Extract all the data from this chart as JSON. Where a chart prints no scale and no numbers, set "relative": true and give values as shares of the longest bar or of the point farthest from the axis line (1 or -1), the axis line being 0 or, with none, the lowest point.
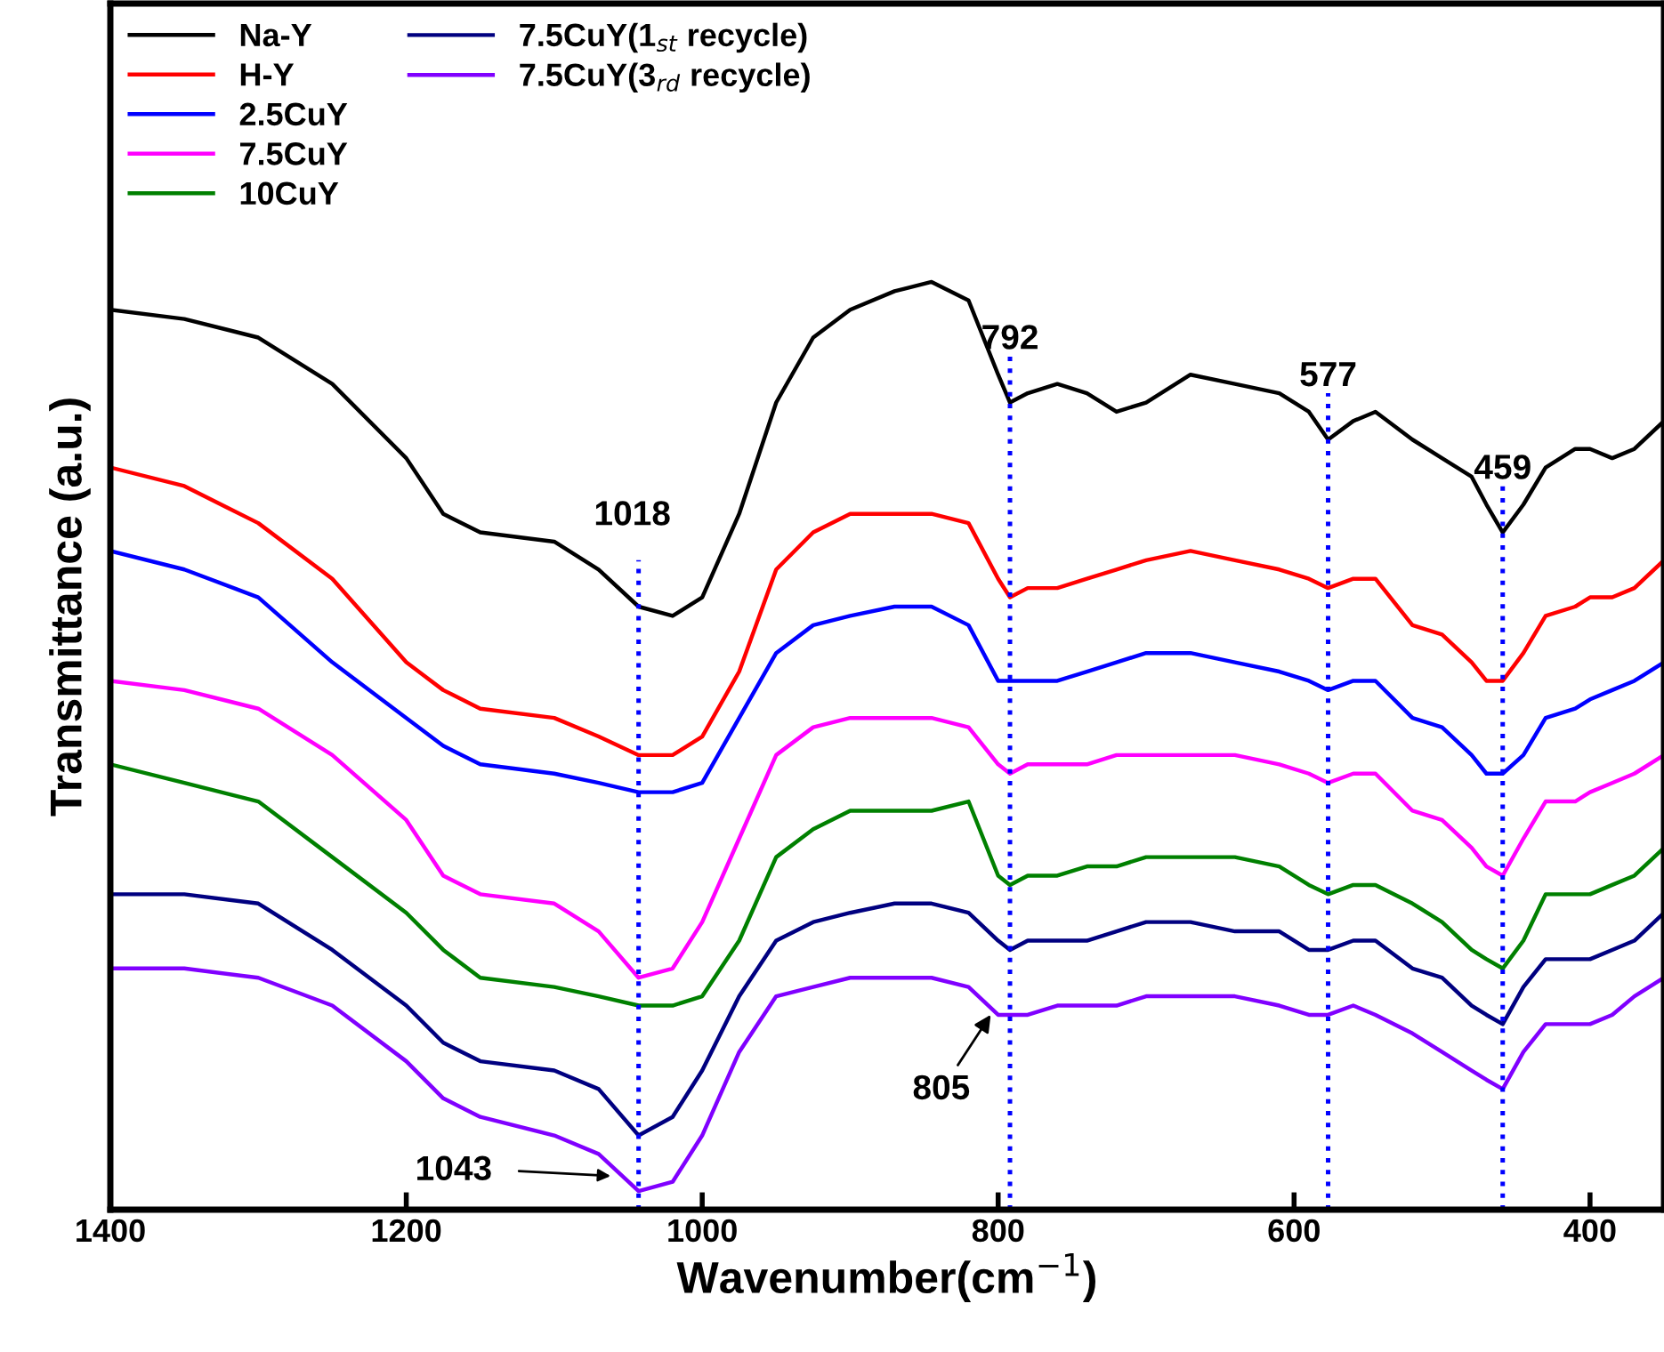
{
  "chart_data": {
    "type": "line",
    "relative": true,
    "xlabel": "Wavenumber(cm$^{−1}$)",
    "ylabel": "Transmittance (a.u.)",
    "xlim": [
      1400,
      350
    ],
    "xticks": [
      1400,
      1200,
      1000,
      800,
      600,
      400
    ],
    "grid": false,
    "legend": "top left",
    "line_style": "solid",
    "marker": "none",
    "x": [
      1400,
      1350,
      1300,
      1250,
      1200,
      1175,
      1150,
      1100,
      1070,
      1043,
      1020,
      1000,
      975,
      950,
      925,
      900,
      870,
      845,
      820,
      800,
      792,
      780,
      760,
      740,
      720,
      700,
      670,
      640,
      610,
      590,
      577,
      560,
      545,
      520,
      500,
      480,
      470,
      459,
      445,
      430,
      410,
      400,
      385,
      370,
      350
    ],
    "series": [
      {
        "name": "Na-Y",
        "color": "#000000",
        "values": [
          0.97,
          0.96,
          0.94,
          0.89,
          0.81,
          0.75,
          0.73,
          0.72,
          0.69,
          0.65,
          0.64,
          0.66,
          0.75,
          0.87,
          0.94,
          0.97,
          0.99,
          1.0,
          0.98,
          0.9,
          0.87,
          0.88,
          0.89,
          0.88,
          0.86,
          0.87,
          0.9,
          0.89,
          0.88,
          0.86,
          0.83,
          0.85,
          0.86,
          0.83,
          0.81,
          0.79,
          0.76,
          0.73,
          0.76,
          0.8,
          0.82,
          0.82,
          0.81,
          0.82,
          0.85
        ]
      },
      {
        "name": "H-Y",
        "color": "#ff0000",
        "values": [
          0.8,
          0.78,
          0.74,
          0.68,
          0.59,
          0.56,
          0.54,
          0.53,
          0.51,
          0.49,
          0.49,
          0.51,
          0.58,
          0.69,
          0.73,
          0.75,
          0.75,
          0.75,
          0.74,
          0.68,
          0.66,
          0.67,
          0.67,
          0.68,
          0.69,
          0.7,
          0.71,
          0.7,
          0.69,
          0.68,
          0.67,
          0.68,
          0.68,
          0.63,
          0.62,
          0.59,
          0.57,
          0.57,
          0.6,
          0.64,
          0.65,
          0.66,
          0.66,
          0.67,
          0.7
        ]
      },
      {
        "name": "2.5CuY",
        "color": "#0000ff",
        "values": [
          0.71,
          0.69,
          0.66,
          0.59,
          0.53,
          0.5,
          0.48,
          0.47,
          0.46,
          0.45,
          0.45,
          0.46,
          0.53,
          0.6,
          0.63,
          0.64,
          0.65,
          0.65,
          0.63,
          0.57,
          0.57,
          0.57,
          0.57,
          0.58,
          0.59,
          0.6,
          0.6,
          0.59,
          0.58,
          0.57,
          0.56,
          0.57,
          0.57,
          0.53,
          0.52,
          0.49,
          0.47,
          0.47,
          0.49,
          0.53,
          0.54,
          0.55,
          0.56,
          0.57,
          0.59
        ]
      },
      {
        "name": "7.5CuY",
        "color": "#ff00ff",
        "values": [
          0.57,
          0.56,
          0.54,
          0.49,
          0.42,
          0.36,
          0.34,
          0.33,
          0.3,
          0.25,
          0.26,
          0.31,
          0.4,
          0.49,
          0.52,
          0.53,
          0.53,
          0.53,
          0.52,
          0.48,
          0.47,
          0.48,
          0.48,
          0.48,
          0.49,
          0.49,
          0.49,
          0.49,
          0.48,
          0.47,
          0.46,
          0.47,
          0.47,
          0.43,
          0.42,
          0.39,
          0.37,
          0.36,
          0.4,
          0.44,
          0.44,
          0.45,
          0.46,
          0.47,
          0.49
        ]
      },
      {
        "name": "10CuY",
        "color": "#008000",
        "values": [
          0.48,
          0.46,
          0.44,
          0.38,
          0.32,
          0.28,
          0.25,
          0.24,
          0.23,
          0.22,
          0.22,
          0.23,
          0.29,
          0.38,
          0.41,
          0.43,
          0.43,
          0.43,
          0.44,
          0.36,
          0.35,
          0.36,
          0.36,
          0.37,
          0.37,
          0.38,
          0.38,
          0.38,
          0.37,
          0.35,
          0.34,
          0.35,
          0.35,
          0.33,
          0.31,
          0.28,
          0.27,
          0.26,
          0.29,
          0.34,
          0.34,
          0.34,
          0.35,
          0.36,
          0.39
        ]
      },
      {
        "name": "7.5CuY(1$_{st}$ recycle)",
        "color": "#000080",
        "values": [
          0.34,
          0.34,
          0.33,
          0.28,
          0.22,
          0.18,
          0.16,
          0.15,
          0.13,
          0.08,
          0.1,
          0.15,
          0.23,
          0.29,
          0.31,
          0.32,
          0.33,
          0.33,
          0.32,
          0.29,
          0.28,
          0.29,
          0.29,
          0.29,
          0.3,
          0.31,
          0.31,
          0.3,
          0.3,
          0.28,
          0.28,
          0.29,
          0.29,
          0.26,
          0.25,
          0.22,
          0.21,
          0.2,
          0.24,
          0.27,
          0.27,
          0.27,
          0.28,
          0.29,
          0.32
        ]
      },
      {
        "name": "7.5CuY(3$_{rd}$ recycle)",
        "color": "#8000ff",
        "values": [
          0.26,
          0.26,
          0.25,
          0.22,
          0.16,
          0.12,
          0.1,
          0.08,
          0.06,
          0.02,
          0.03,
          0.08,
          0.17,
          0.23,
          0.24,
          0.25,
          0.25,
          0.25,
          0.24,
          0.21,
          0.21,
          0.21,
          0.22,
          0.22,
          0.22,
          0.23,
          0.23,
          0.23,
          0.22,
          0.21,
          0.21,
          0.22,
          0.21,
          0.19,
          0.17,
          0.15,
          0.14,
          0.13,
          0.17,
          0.2,
          0.2,
          0.2,
          0.21,
          0.23,
          0.25
        ]
      }
    ],
    "ref_lines": [
      {
        "axis": "x",
        "value": 1043,
        "color": "#0000ff",
        "line_style": "dotted"
      },
      {
        "axis": "x",
        "value": 792,
        "label": "792",
        "color": "#0000ff",
        "line_style": "dotted"
      },
      {
        "axis": "x",
        "value": 577,
        "label": "577",
        "color": "#0000ff",
        "line_style": "dotted"
      },
      {
        "axis": "x",
        "value": 459,
        "label": "459",
        "color": "#0000ff",
        "line_style": "dotted"
      }
    ],
    "annotations": [
      "1018",
      {
        "text": "805",
        "x": 805,
        "y": 0.21
      },
      "1043"
    ]
  }
}
